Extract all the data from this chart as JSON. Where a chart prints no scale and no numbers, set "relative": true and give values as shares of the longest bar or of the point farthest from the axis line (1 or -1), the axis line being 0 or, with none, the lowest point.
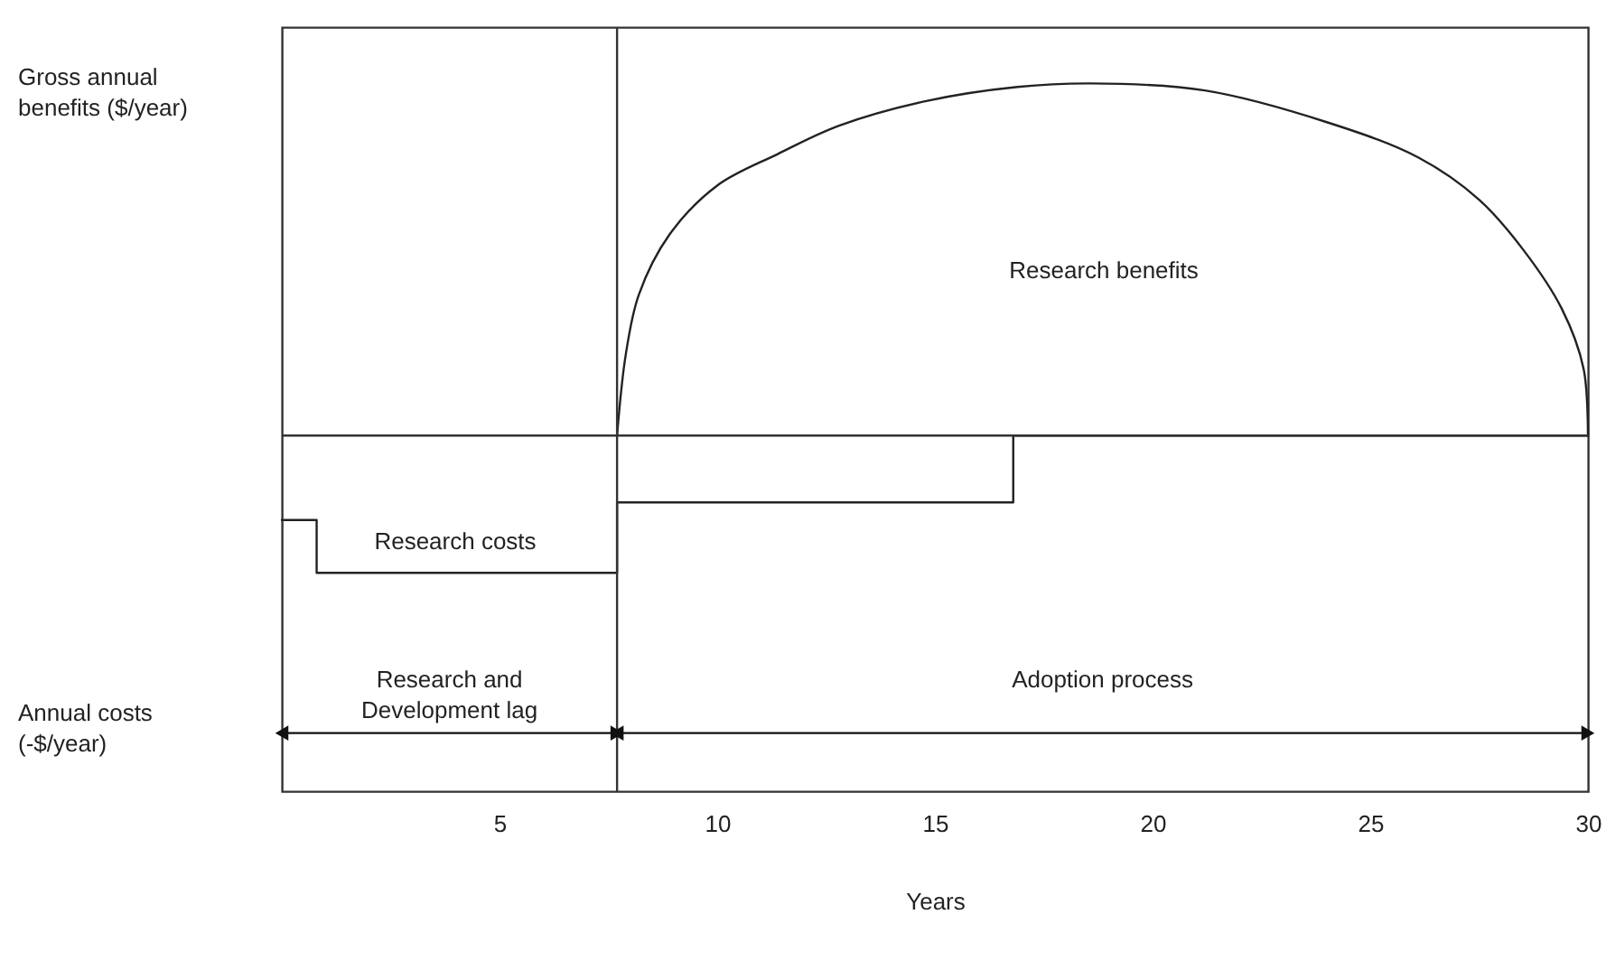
{
  "chart_data": {
    "type": "line",
    "relative": true,
    "xlabel": "Years",
    "ylabel": "Gross annual benefits ($/year)",
    "xlim": [
      0,
      30
    ],
    "xticks": [
      5,
      10,
      15,
      20,
      25,
      30
    ],
    "series": [
      {
        "color": "#222222",
        "x": [
          7.7,
          7.9,
          8.2,
          8.9,
          10,
          11.4,
          12.8,
          14.8,
          16.9,
          18.6,
          21.2,
          24,
          26.1,
          27.5,
          28.5,
          29.4,
          29.9,
          30
        ],
        "values": [
          0,
          0.23,
          0.4,
          0.57,
          0.71,
          0.8,
          0.88,
          0.95,
          0.99,
          1,
          0.98,
          0.89,
          0.79,
          0.67,
          0.53,
          0.36,
          0.19,
          0
        ]
      },
      {
        "type": "step",
        "color": "#222222",
        "x": [
          0,
          0.8,
          7.7,
          16.8,
          30
        ],
        "values": [
          -0.24,
          -0.39,
          -0.19,
          0,
          0
        ]
      }
    ],
    "ref_lines": [
      {
        "axis": "x",
        "value": 7.7
      }
    ],
    "annotations": [
      "Annual costs (-$/year)",
      "Research and Development lag",
      "Adoption process",
      "Research benefits",
      "Research costs"
    ]
  }
}
